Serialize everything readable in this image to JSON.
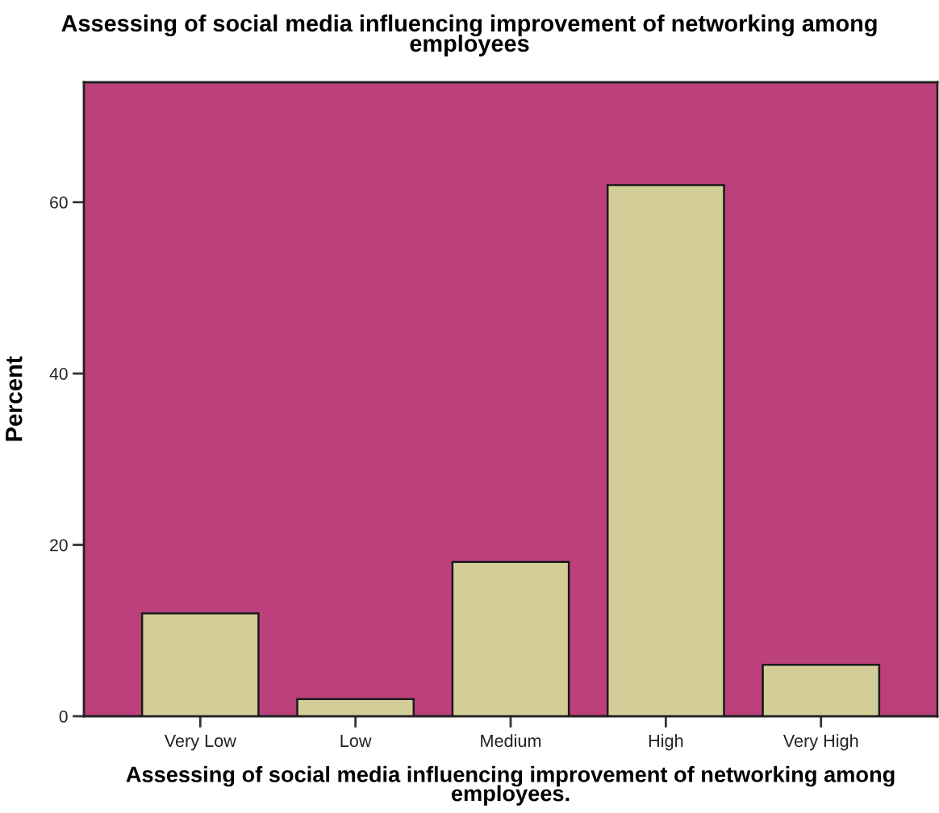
{
  "chart_data": {
    "type": "bar",
    "title": "Assessing of social media influencing improvement of networking among employees",
    "xlabel": "Assessing of social media influencing improvement of networking among employees.",
    "ylabel": "Percent",
    "categories": [
      "Very Low",
      "Low",
      "Medium",
      "High",
      "Very High"
    ],
    "values": [
      12,
      2,
      18,
      62,
      6
    ],
    "color": "#d3ce98",
    "ylim": [
      0,
      74
    ],
    "yticks": [
      0,
      20,
      40,
      60
    ]
  }
}
